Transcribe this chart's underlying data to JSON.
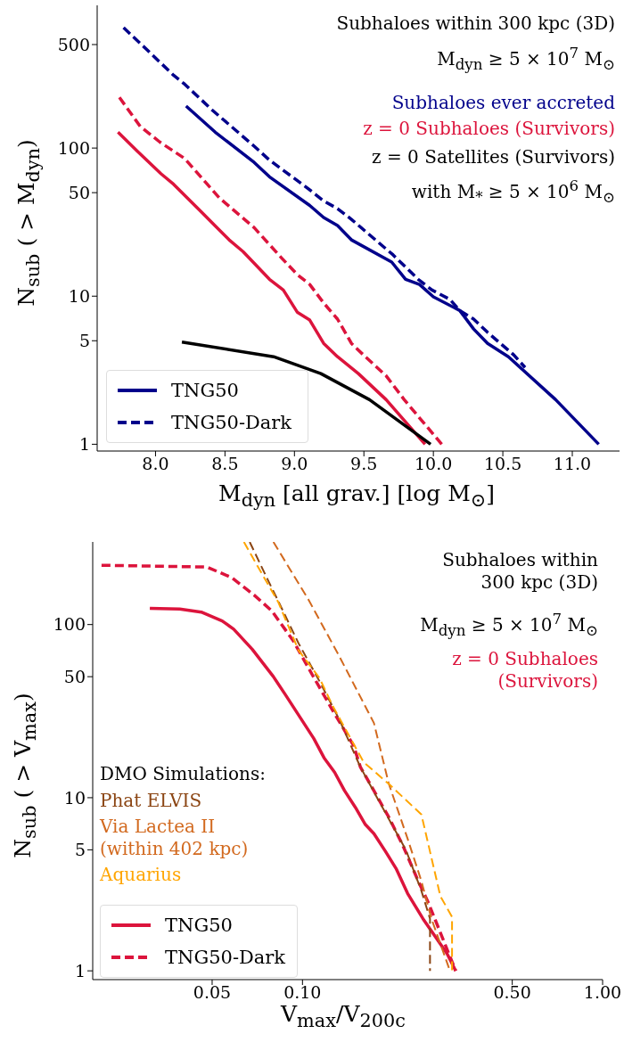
{
  "chart_data": [
    {
      "type": "line",
      "xlabel": "M$_{dyn}$ [all grav.] [log M$_{⊙}$]",
      "ylabel": "N$_{sub}$ ( > M$_{dyn}$)",
      "log": "y",
      "xlim": [
        7.58,
        11.34
      ],
      "ylim": [
        0.9,
        920
      ],
      "xticks": [
        {
          "value": 8,
          "label": "8.0"
        },
        {
          "value": 8.5,
          "label": "8.5"
        },
        {
          "value": 9,
          "label": "9.0"
        },
        {
          "value": 9.5,
          "label": "9.5"
        },
        {
          "value": 10,
          "label": "10.0"
        },
        {
          "value": 10.5,
          "label": "10.5"
        },
        {
          "value": 11,
          "label": "11.0"
        }
      ],
      "yticks": [
        1,
        5,
        10,
        50,
        100,
        500
      ],
      "grid": false,
      "legend": "bottom left",
      "annotations": [
        "Subhaloes within 300 kpc (3D)",
        "M$_{dyn}$ ≥ 5 × 10$^{7}$ M$_{⊙}$",
        "Subhaloes ever accreted",
        "z = 0 Subhaloes (Survivors)",
        "z = 0 Satellites (Survivors)",
        "with M$_{*}$ ≥ 5 × 10$^{6}$ M$_{⊙}$"
      ],
      "series": [
        {
          "name": "TNG50",
          "color": "#00008b",
          "line_style": "solid",
          "x": [
            8.22,
            8.43,
            8.71,
            8.82,
            9.11,
            9.21,
            9.31,
            9.41,
            9.7,
            9.8,
            9.9,
            10.0,
            10.19,
            10.29,
            10.39,
            10.54,
            10.88,
            11.19
          ],
          "values": [
            192,
            128,
            80,
            64,
            41,
            34,
            30,
            24,
            17,
            13,
            12,
            9.9,
            8,
            6,
            4.8,
            3.9,
            2,
            1
          ]
        },
        {
          "name": "TNG50-Dark",
          "color": "#00008b",
          "line_style": "dashed",
          "x": [
            7.77,
            7.94,
            8.13,
            8.21,
            8.41,
            8.71,
            8.82,
            9.09,
            9.21,
            9.31,
            9.41,
            9.71,
            9.89,
            9.99,
            10.12,
            10.19,
            10.29,
            10.39,
            10.58,
            10.66
          ],
          "values": [
            650,
            460,
            310,
            270,
            180,
            103,
            83,
            54,
            44,
            39,
            33,
            19,
            13,
            11,
            9.5,
            8,
            7,
            5.7,
            4,
            3.3
          ]
        },
        {
          "color": "#dc143c",
          "line_style": "solid",
          "x": [
            7.73,
            7.87,
            8.04,
            8.13,
            8.33,
            8.53,
            8.63,
            8.82,
            8.92,
            9.02,
            9.11,
            9.21,
            9.31,
            9.46,
            9.66,
            9.94
          ],
          "values": [
            128,
            95,
            67,
            57,
            37,
            24,
            20,
            13,
            11,
            7.8,
            6.9,
            4.8,
            3.9,
            3,
            2,
            1
          ]
        },
        {
          "color": "#dc143c",
          "line_style": "dashed",
          "x": [
            7.74,
            7.89,
            8.03,
            8.21,
            8.46,
            8.71,
            8.91,
            9.02,
            9.11,
            9.21,
            9.31,
            9.41,
            9.51,
            9.66,
            9.79,
            10.06
          ],
          "values": [
            220,
            140,
            110,
            85,
            46,
            29,
            18,
            14,
            12,
            9,
            7,
            4.8,
            3.9,
            2.9,
            2,
            1
          ]
        },
        {
          "color": "#000000",
          "line_style": "solid",
          "x": [
            8.19,
            8.85,
            9.19,
            9.54,
            9.98
          ],
          "values": [
            4.9,
            3.9,
            3,
            2,
            1
          ]
        }
      ]
    },
    {
      "type": "line",
      "xlabel": "V$_{max}$/V$_{200c}$",
      "ylabel": "N$_{sub}$ ( > V$_{max}$)",
      "log": "xy",
      "xlim": [
        0.02,
        1.0
      ],
      "ylim": [
        0.89,
        300
      ],
      "xticks": [
        {
          "value": 0.05,
          "label": "0.05"
        },
        {
          "value": 0.1,
          "label": "0.10"
        },
        {
          "value": 0.5,
          "label": "0.50"
        },
        {
          "value": 1,
          "label": "1.00"
        }
      ],
      "yticks": [
        1,
        5,
        10,
        50,
        100
      ],
      "grid": false,
      "legend": "bottom left",
      "annotations": [
        "Subhaloes within 300 kpc (3D)",
        "M$_{dyn}$ ≥ 5 × 10$^{7}$ M$_{⊙}$",
        "z = 0 Subhaloes (Survivors)",
        "DMO Simulations:"
      ],
      "series": [
        {
          "name": "TNG50",
          "color": "#dc143c",
          "line_style": "solid",
          "x": [
            0.031,
            0.039,
            0.046,
            0.054,
            0.059,
            0.068,
            0.08,
            0.088,
            0.109,
            0.118,
            0.128,
            0.138,
            0.15,
            0.162,
            0.173,
            0.189,
            0.205,
            0.224,
            0.252,
            0.303,
            0.324
          ],
          "values": [
            124,
            123,
            118,
            105,
            94,
            72,
            50,
            39,
            22,
            17,
            14,
            11,
            8.8,
            7,
            6.2,
            4.9,
            3.9,
            2.8,
            2,
            1.26,
            1
          ]
        },
        {
          "name": "TNG50-Dark",
          "color": "#dc143c",
          "line_style": "dashed",
          "x": [
            0.0214,
            0.048,
            0.058,
            0.069,
            0.079,
            0.093,
            0.108,
            0.126,
            0.148,
            0.156,
            0.168,
            0.194,
            0.216,
            0.243,
            0.262,
            0.324
          ],
          "values": [
            220,
            215,
            187,
            148,
            120,
            81,
            51,
            32,
            20,
            15,
            12,
            7.7,
            5.3,
            3.3,
            2.5,
            1
          ]
        },
        {
          "name": "Phat ELVIS",
          "color": "#8b4513",
          "line_style": "dashed",
          "x": [
            0.0667,
            0.075,
            0.0855,
            0.097,
            0.114,
            0.133,
            0.156,
            0.182,
            0.221,
            0.249,
            0.266,
            0.266
          ],
          "values": [
            300,
            196,
            123,
            78,
            47,
            28,
            15,
            9.2,
            5,
            2.9,
            2,
            1
          ]
        },
        {
          "name": "Via Lactea II (within 402 kpc)",
          "color": "#d2691e",
          "line_style": "dashed",
          "x": [
            0.08,
            0.105,
            0.133,
            0.166,
            0.173,
            0.194,
            0.224,
            0.249,
            0.269,
            0.31
          ],
          "values": [
            300,
            138,
            65,
            31,
            27,
            12,
            5.8,
            3.3,
            2,
            1
          ]
        },
        {
          "name": "Aquarius",
          "color": "#ffa500",
          "line_style": "dashed",
          "x": [
            0.0638,
            0.0711,
            0.083,
            0.097,
            0.114,
            0.126,
            0.16,
            0.194,
            0.249,
            0.288,
            0.315,
            0.315
          ],
          "values": [
            300,
            215,
            135,
            71,
            49,
            34,
            16,
            12,
            8,
            2.7,
            2.05,
            1
          ]
        }
      ]
    }
  ]
}
